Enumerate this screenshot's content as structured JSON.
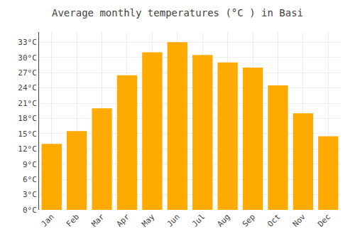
{
  "chart_data": {
    "type": "bar",
    "title": "Average monthly temperatures (°C ) in Basi",
    "categories": [
      "Jan",
      "Feb",
      "Mar",
      "Apr",
      "May",
      "Jun",
      "Jul",
      "Aug",
      "Sep",
      "Oct",
      "Nov",
      "Dec"
    ],
    "values": [
      13,
      15.5,
      20,
      26.5,
      31,
      33,
      30.5,
      29,
      28,
      24.5,
      19,
      14.5
    ],
    "color": "#FFAA00",
    "ylim": [
      0,
      35
    ],
    "yticks": [
      {
        "value": 0,
        "label": "0°C"
      },
      {
        "value": 3,
        "label": "3°C"
      },
      {
        "value": 6,
        "label": "6°C"
      },
      {
        "value": 9,
        "label": "9°C"
      },
      {
        "value": 12,
        "label": "12°C"
      },
      {
        "value": 15,
        "label": "15°C"
      },
      {
        "value": 18,
        "label": "18°C"
      },
      {
        "value": 21,
        "label": "21°C"
      },
      {
        "value": 24,
        "label": "24°C"
      },
      {
        "value": 27,
        "label": "27°C"
      },
      {
        "value": 30,
        "label": "30°C"
      },
      {
        "value": 33,
        "label": "33°C"
      }
    ],
    "grid": true
  }
}
